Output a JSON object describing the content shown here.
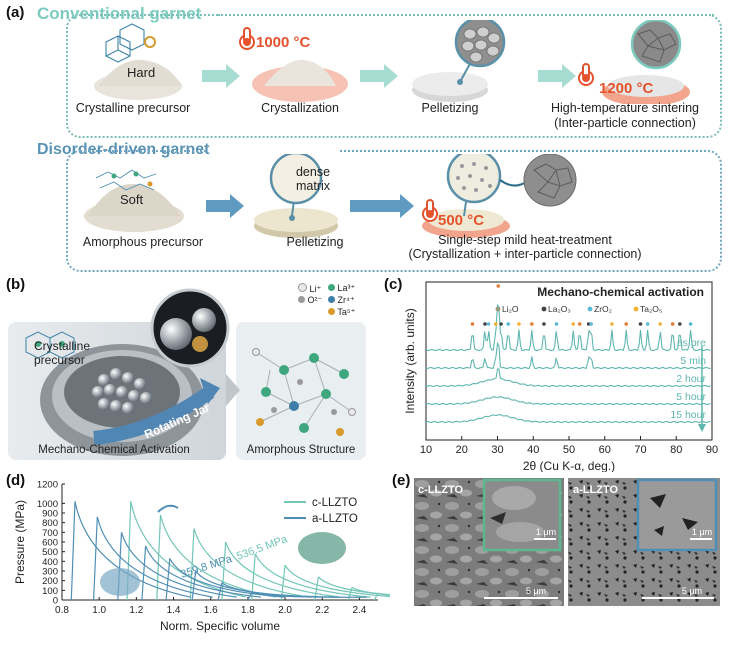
{
  "panel_a": {
    "label": "(a)",
    "conventional_title": "Conventional garnet",
    "disorder_title": "Disorder-driven garnet",
    "hard_label": "Hard",
    "soft_label": "Soft",
    "dense_label_1": "dense",
    "dense_label_2": "matrix",
    "temp_1000": "1000 °C",
    "temp_1200": "1200 °C",
    "temp_500": "500 °C",
    "captions": {
      "crystalline_precursor": "Crystalline precursor",
      "crystallization": "Crystallization",
      "pelletizing_1": "Pelletizing",
      "sintering_1": "High-temperature sintering",
      "sintering_2": "(Inter-particle connection)",
      "amorphous_precursor": "Amorphous precursor",
      "pelletizing_2": "Pelletizing",
      "mild_1": "Single-step mild heat-treatment",
      "mild_2": "(Crystallization + inter-particle connection)"
    }
  },
  "panel_b": {
    "label": "(b)",
    "crystalline_1": "Crystalline",
    "crystalline_2": "precursor",
    "rotating_jar": "Rotating Jar",
    "mechano_caption": "Mechano-Chemical Activation",
    "amorphous_caption": "Amorphous Structure",
    "legend": [
      {
        "symbol": "Li⁺",
        "color": "#e8e8e8"
      },
      {
        "symbol": "La³⁺",
        "color": "#3ea77d"
      },
      {
        "symbol": "O²⁻",
        "color": "#9a9a9a"
      },
      {
        "symbol": "Zr⁴⁺",
        "color": "#3d7fa8"
      },
      {
        "symbol": "Ta⁵⁺",
        "color": "#d79a2b"
      }
    ]
  },
  "panel_c": {
    "label": "(c)",
    "title": "Mechano-chemical activation",
    "legend": [
      {
        "name": "Li₂O",
        "color": "#e07b39"
      },
      {
        "name": "La₂O₃",
        "color": "#444444"
      },
      {
        "name": "ZrO₂",
        "color": "#5bb8d6"
      },
      {
        "name": "Ta₂O₅",
        "color": "#f2b134"
      }
    ],
    "series_labels": [
      "as pre",
      "5 min",
      "2 hour",
      "5 hour",
      "15 hour"
    ],
    "xlabel": "2θ (Cu K-α, deg.)",
    "ylabel": "Intensity (arb. units)",
    "xticks": [
      "10",
      "20",
      "30",
      "40",
      "50",
      "60",
      "70",
      "80",
      "90"
    ],
    "color": "#5fb6b0"
  },
  "panel_d": {
    "label": "(d)",
    "legend": [
      {
        "name": "c-LLZTO",
        "color": "#72c6b8"
      },
      {
        "name": "a-LLZTO",
        "color": "#4f8fb5"
      }
    ],
    "annot_c": "536.5 MPa",
    "annot_a": "359.8 MPa",
    "xlabel": "Norm. Specific volume",
    "ylabel": "Pressure (MPa)",
    "xticks": [
      "0.8",
      "1.0",
      "1.2",
      "1.4",
      "1.6",
      "1.8",
      "2.0",
      "2.2",
      "2.4"
    ],
    "yticks": [
      "0",
      "100",
      "200",
      "300",
      "400",
      "500",
      "600",
      "700",
      "800",
      "900",
      "1000",
      "1200"
    ]
  },
  "panel_e": {
    "label": "(e)",
    "left_label": "c-LLZTO",
    "right_label": "a-LLZTO",
    "inset_scale": "1 μm",
    "main_scale": "5 μm",
    "left_inset_color": "#5cb98f",
    "right_inset_color": "#4f8fb5"
  },
  "chart_data": [
    {
      "type": "line",
      "title": "Mechano-chemical activation",
      "xlabel": "2θ (Cu K-α, deg.)",
      "ylabel": "Intensity (arb. units)",
      "xlim": [
        10,
        90
      ],
      "xticks": [
        10,
        20,
        30,
        40,
        50,
        60,
        70,
        80,
        90
      ],
      "series": [
        {
          "name": "as pre",
          "peaks_2theta": [
            23,
            26.5,
            27.5,
            29.5,
            30.2,
            31,
            33,
            36,
            39.6,
            43,
            46.5,
            51.2,
            53,
            55.5,
            56.2,
            62,
            66,
            70,
            72,
            75.5,
            79,
            81,
            84
          ]
        },
        {
          "name": "5 min",
          "peaks_2theta": [
            23,
            26.5,
            29.5,
            30.2,
            39.6,
            46.5,
            55.5,
            56.2
          ]
        },
        {
          "name": "2 hour",
          "peaks_2theta": [
            30.2
          ]
        },
        {
          "name": "5 hour",
          "peaks_2theta": []
        },
        {
          "name": "15 hour",
          "peaks_2theta": []
        }
      ]
    },
    {
      "type": "line",
      "xlabel": "Norm. Specific volume",
      "ylabel": "Pressure (MPa)",
      "xlim": [
        0.8,
        2.5
      ],
      "ylim": [
        0,
        1200
      ],
      "series": [
        {
          "name": "c-LLZTO",
          "onset_x": [
            1.17,
            1.33,
            1.51,
            1.68,
            1.84,
            2.0,
            2.18,
            2.36,
            2.5
          ],
          "peak_y": [
            1020,
            880,
            740,
            600,
            480,
            360,
            240,
            130,
            70
          ]
        },
        {
          "name": "a-LLZTO",
          "onset_x": [
            0.87,
            0.99,
            1.12,
            1.25,
            1.38,
            1.52,
            1.66,
            1.82
          ],
          "peak_y": [
            1020,
            860,
            700,
            560,
            430,
            300,
            180,
            80
          ]
        }
      ],
      "annotations": [
        "536.5 MPa",
        "359.8 MPa"
      ]
    }
  ]
}
